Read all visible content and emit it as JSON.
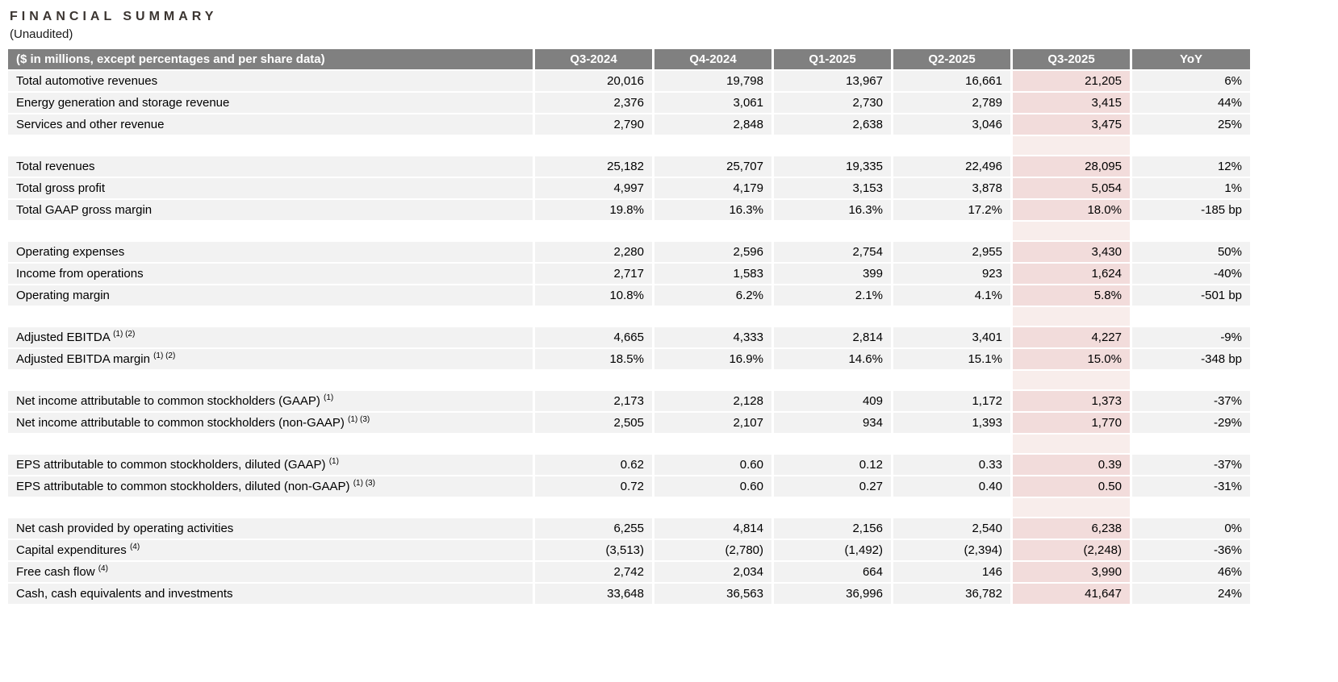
{
  "page": {
    "title": "FINANCIAL SUMMARY",
    "subtitle": "(Unaudited)"
  },
  "colors": {
    "header_bg": "#808080",
    "header_text": "#ffffff",
    "row_bg": "#f2f2f2",
    "highlight_column_bg": "#f2dcdb",
    "highlight_spacer_bg": "#f8edeb"
  },
  "table": {
    "header": {
      "label": "($ in millions, except percentages and per share data)",
      "columns": [
        "Q3-2024",
        "Q4-2024",
        "Q1-2025",
        "Q2-2025",
        "Q3-2025",
        "YoY"
      ],
      "highlighted_column": "Q3-2025"
    },
    "rows": [
      {
        "label": "Total automotive revenues",
        "sup": "",
        "values": [
          "20,016",
          "19,798",
          "13,967",
          "16,661",
          "21,205",
          "6%"
        ]
      },
      {
        "label": "Energy generation and storage revenue",
        "sup": "",
        "values": [
          "2,376",
          "3,061",
          "2,730",
          "2,789",
          "3,415",
          "44%"
        ]
      },
      {
        "label": "Services and other revenue",
        "sup": "",
        "values": [
          "2,790",
          "2,848",
          "2,638",
          "3,046",
          "3,475",
          "25%"
        ]
      },
      {
        "spacer": true
      },
      {
        "label": "Total revenues",
        "sup": "",
        "values": [
          "25,182",
          "25,707",
          "19,335",
          "22,496",
          "28,095",
          "12%"
        ]
      },
      {
        "label": "Total gross profit",
        "sup": "",
        "values": [
          "4,997",
          "4,179",
          "3,153",
          "3,878",
          "5,054",
          "1%"
        ]
      },
      {
        "label": "Total GAAP gross margin",
        "sup": "",
        "values": [
          "19.8%",
          "16.3%",
          "16.3%",
          "17.2%",
          "18.0%",
          "-185 bp"
        ]
      },
      {
        "spacer": true
      },
      {
        "label": "Operating expenses",
        "sup": "",
        "values": [
          "2,280",
          "2,596",
          "2,754",
          "2,955",
          "3,430",
          "50%"
        ]
      },
      {
        "label": "Income from operations",
        "sup": "",
        "values": [
          "2,717",
          "1,583",
          "399",
          "923",
          "1,624",
          "-40%"
        ]
      },
      {
        "label": "Operating margin",
        "sup": "",
        "values": [
          "10.8%",
          "6.2%",
          "2.1%",
          "4.1%",
          "5.8%",
          "-501 bp"
        ]
      },
      {
        "spacer": true
      },
      {
        "label": "Adjusted EBITDA",
        "sup": "(1) (2)",
        "values": [
          "4,665",
          "4,333",
          "2,814",
          "3,401",
          "4,227",
          "-9%"
        ]
      },
      {
        "label": "Adjusted EBITDA margin",
        "sup": "(1) (2)",
        "values": [
          "18.5%",
          "16.9%",
          "14.6%",
          "15.1%",
          "15.0%",
          "-348 bp"
        ]
      },
      {
        "spacer": true
      },
      {
        "label": "Net income attributable to common stockholders (GAAP)",
        "sup": "(1)",
        "values": [
          "2,173",
          "2,128",
          "409",
          "1,172",
          "1,373",
          "-37%"
        ]
      },
      {
        "label": "Net income attributable to common stockholders (non-GAAP)",
        "sup": "(1) (3)",
        "values": [
          "2,505",
          "2,107",
          "934",
          "1,393",
          "1,770",
          "-29%"
        ]
      },
      {
        "spacer": true
      },
      {
        "label": "EPS attributable to common stockholders, diluted (GAAP)",
        "sup": "(1)",
        "values": [
          "0.62",
          "0.60",
          "0.12",
          "0.33",
          "0.39",
          "-37%"
        ]
      },
      {
        "label": "EPS attributable to common stockholders, diluted (non-GAAP)",
        "sup": "(1) (3)",
        "values": [
          "0.72",
          "0.60",
          "0.27",
          "0.40",
          "0.50",
          "-31%"
        ]
      },
      {
        "spacer": true
      },
      {
        "label": "Net cash provided by operating activities",
        "sup": "",
        "values": [
          "6,255",
          "4,814",
          "2,156",
          "2,540",
          "6,238",
          "0%"
        ]
      },
      {
        "label": "Capital expenditures",
        "sup": "(4)",
        "values": [
          "(3,513)",
          "(2,780)",
          "(1,492)",
          "(2,394)",
          "(2,248)",
          "-36%"
        ]
      },
      {
        "label": "Free cash flow",
        "sup": "(4)",
        "values": [
          "2,742",
          "2,034",
          "664",
          "146",
          "3,990",
          "46%"
        ]
      },
      {
        "label": "Cash, cash equivalents and investments",
        "sup": "",
        "values": [
          "33,648",
          "36,563",
          "36,996",
          "36,782",
          "41,647",
          "24%"
        ]
      }
    ]
  }
}
